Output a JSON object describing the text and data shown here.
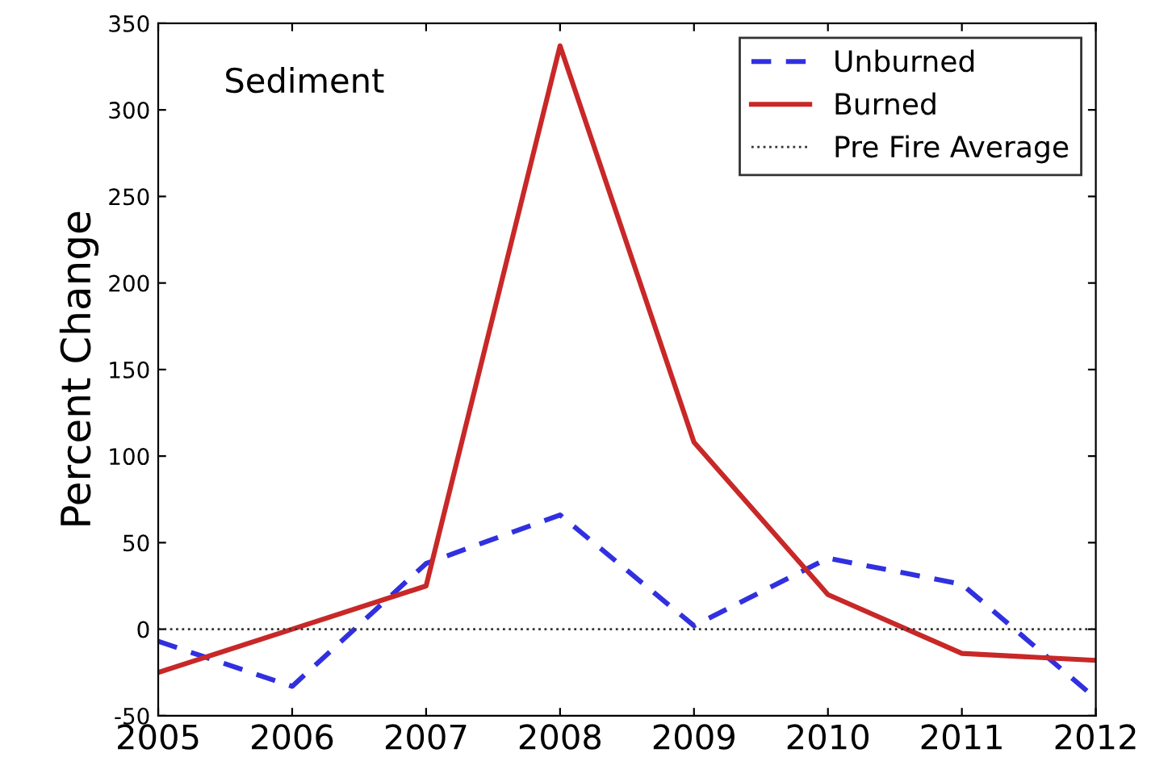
{
  "chart_data": {
    "type": "line",
    "ylabel": "Percent Change",
    "annotations": [
      "Sediment"
    ],
    "x": [
      2005,
      2006,
      2007,
      2008,
      2009,
      2010,
      2011,
      2012
    ],
    "series": [
      {
        "name": "Unburned",
        "color": "#3030e0",
        "line_style": "dashed",
        "values": [
          -7,
          -33,
          38,
          66,
          2,
          41,
          26,
          -40
        ]
      },
      {
        "name": "Burned",
        "color": "#c82828",
        "line_style": "solid",
        "values": [
          -25,
          0,
          25,
          337,
          108,
          20,
          -14,
          -18
        ]
      }
    ],
    "ref_lines": [
      {
        "axis": "y",
        "value": 0,
        "label": "Pre Fire Average",
        "color": "#333333",
        "line_style": "dotted"
      }
    ],
    "xlim": [
      2005,
      2012
    ],
    "xticks": [
      2005,
      2006,
      2007,
      2008,
      2009,
      2010,
      2011,
      2012
    ],
    "ylim": [
      -50,
      350
    ],
    "yticks": [
      -50,
      0,
      50,
      100,
      150,
      200,
      250,
      300,
      350
    ],
    "legend": "top right",
    "grid": false,
    "marker": "none"
  }
}
